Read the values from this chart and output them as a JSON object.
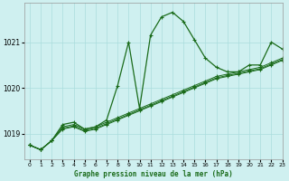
{
  "title": "Graphe pression niveau de la mer (hPa)",
  "bg_color": "#cff0f0",
  "grid_color": "#aadddd",
  "line_color": "#1a6b1a",
  "xlim": [
    -0.5,
    23
  ],
  "ylim": [
    1018.45,
    1021.85
  ],
  "yticks": [
    1019,
    1020,
    1021
  ],
  "xticks": [
    0,
    1,
    2,
    3,
    4,
    5,
    6,
    7,
    8,
    9,
    10,
    11,
    12,
    13,
    14,
    15,
    16,
    17,
    18,
    19,
    20,
    21,
    22,
    23
  ],
  "series": [
    [
      1018.75,
      1018.65,
      1018.85,
      1019.2,
      1019.25,
      1019.1,
      1019.15,
      1019.3,
      1020.05,
      1021.0,
      1019.55,
      1021.15,
      1021.55,
      1021.65,
      1021.45,
      1021.05,
      1020.65,
      1020.45,
      1020.35,
      1020.35,
      1020.5,
      1020.5,
      1021.0,
      1020.85
    ],
    [
      1018.75,
      1018.65,
      1018.85,
      1019.15,
      1019.2,
      1019.1,
      1019.15,
      1019.25,
      1019.35,
      1019.45,
      1019.55,
      1019.65,
      1019.75,
      1019.85,
      1019.95,
      1020.05,
      1020.15,
      1020.25,
      1020.3,
      1020.35,
      1020.4,
      1020.45,
      1020.55,
      1020.65
    ],
    [
      1018.75,
      1018.65,
      1018.85,
      1019.1,
      1019.15,
      1019.05,
      1019.1,
      1019.2,
      1019.3,
      1019.4,
      1019.5,
      1019.6,
      1019.7,
      1019.8,
      1019.9,
      1020.0,
      1020.1,
      1020.2,
      1020.25,
      1020.3,
      1020.35,
      1020.4,
      1020.5,
      1020.6
    ],
    [
      1018.75,
      1018.65,
      1018.85,
      1019.12,
      1019.17,
      1019.07,
      1019.12,
      1019.22,
      1019.32,
      1019.42,
      1019.52,
      1019.62,
      1019.72,
      1019.82,
      1019.92,
      1020.02,
      1020.12,
      1020.22,
      1020.27,
      1020.32,
      1020.37,
      1020.42,
      1020.52,
      1020.62
    ]
  ]
}
